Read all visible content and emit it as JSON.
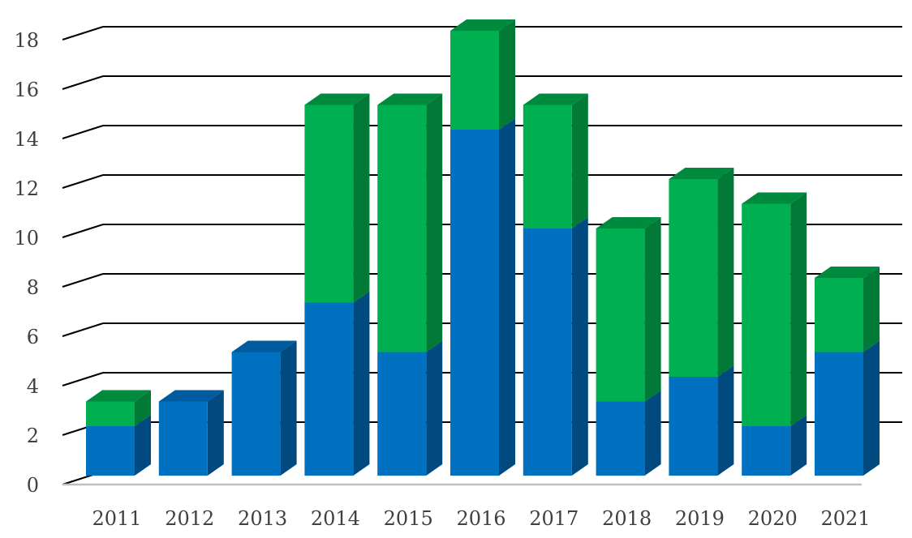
{
  "chart_data": {
    "type": "bar",
    "stacked": true,
    "three_d": true,
    "title": "",
    "xlabel": "",
    "ylabel": "",
    "categories": [
      "2011",
      "2012",
      "2013",
      "2014",
      "2015",
      "2016",
      "2017",
      "2018",
      "2019",
      "2020",
      "2021"
    ],
    "series": [
      {
        "values": [
          2,
          3,
          5,
          7,
          5,
          14,
          10,
          3,
          4,
          2,
          5
        ],
        "color": "#0070C0",
        "side_color": "#004A80",
        "top_color": "#005A9E"
      },
      {
        "values": [
          1,
          0,
          0,
          8,
          10,
          4,
          5,
          7,
          8,
          9,
          3
        ],
        "color": "#00B050",
        "side_color": "#007A36",
        "top_color": "#008A3E"
      }
    ],
    "ylim": [
      0,
      18
    ],
    "yticks": [
      0,
      2,
      4,
      6,
      8,
      10,
      12,
      14,
      16,
      18
    ],
    "grid": true,
    "legend": "none"
  }
}
